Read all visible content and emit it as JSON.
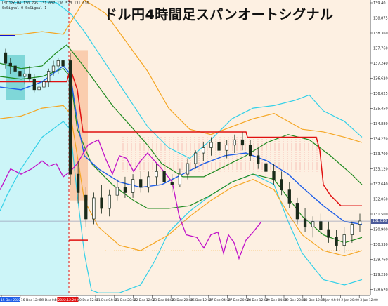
{
  "window": {
    "title": "ドル円4時間足スパンオートシグナル",
    "header_line1": "USDJPY,H4  130.795 131.037 130.573 131.016",
    "header_line2": "SsSignal 0 SsSignal 1"
  },
  "colors": {
    "background": "#ffffff",
    "left_zone": "#ccf5f8",
    "right_zone": "#fdf0e2",
    "salmon_box": "#f9c9a8",
    "cyan_band": "#33d0e8",
    "orange_band": "#f5a623",
    "green_band": "#1f8a1f",
    "red_line": "#e01010",
    "blue_line": "#1e5ee8",
    "magenta_line": "#c010c8",
    "candle": "#1a2a1a"
  },
  "chart_data": {
    "type": "candlestick",
    "symbol": "USDJPY",
    "timeframe": "H4",
    "ylim": [
      128.2,
      139.4
    ],
    "y_ticks": [
      "139.40",
      "138.875",
      "138.360",
      "137.760",
      "137.240",
      "136.620",
      "136.025",
      "135.450",
      "134.880",
      "134.270",
      "133.700",
      "133.120",
      "132.640",
      "132.060",
      "131.500",
      "130.900",
      "130.330",
      "129.760",
      "129.230",
      "128.620"
    ],
    "current_price": "131.016",
    "x_ticks": [
      "15 Dec 2022",
      "16 Dec 12:00",
      "19 Dec 04:00",
      "2022.12.20 04:00",
      "20 Dec 12:00",
      "21 Dec 04:00",
      "21 Dec 20:00",
      "22 Dec 12:00",
      "23 Dec 04:00",
      "23 Dec 20:00",
      "26 Dec 12:00",
      "27 Dec 04:00",
      "27 Dec 20:00",
      "28 Dec 12:00",
      "29 Dec 04:00",
      "29 Dec 20:00",
      "30 Dec 12:00",
      "2 Jan 04:00",
      "2 Jan 20:00",
      "3 Jan 12:00"
    ],
    "candles": [
      [
        137.4,
        137.55,
        136.8,
        137.0
      ],
      [
        137.0,
        137.2,
        136.6,
        136.9
      ],
      [
        136.9,
        137.1,
        136.5,
        136.7
      ],
      [
        136.7,
        136.9,
        136.3,
        136.5
      ],
      [
        136.5,
        136.8,
        136.2,
        136.6
      ],
      [
        136.6,
        136.9,
        136.3,
        136.4
      ],
      [
        136.4,
        136.6,
        135.9,
        136.0
      ],
      [
        136.0,
        136.3,
        135.7,
        136.1
      ],
      [
        136.1,
        136.5,
        135.8,
        136.3
      ],
      [
        136.3,
        136.8,
        136.1,
        136.7
      ],
      [
        136.7,
        137.1,
        136.5,
        136.9
      ],
      [
        136.9,
        137.2,
        136.6,
        137.1
      ],
      [
        137.1,
        137.3,
        136.7,
        136.9
      ],
      [
        137.1,
        137.4,
        132.4,
        132.8
      ],
      [
        132.8,
        133.3,
        131.7,
        132.1
      ],
      [
        132.0,
        132.3,
        130.8,
        131.1
      ],
      [
        131.1,
        132.1,
        130.9,
        131.9
      ],
      [
        131.9,
        132.4,
        131.3,
        131.5
      ],
      [
        131.5,
        132.2,
        131.2,
        132.0
      ],
      [
        132.0,
        132.6,
        131.8,
        132.3
      ],
      [
        132.3,
        132.7,
        131.9,
        132.1
      ],
      [
        132.1,
        132.8,
        131.9,
        132.6
      ],
      [
        132.6,
        132.9,
        132.1,
        132.3
      ],
      [
        132.3,
        132.9,
        132.1,
        132.7
      ],
      [
        132.7,
        133.2,
        132.4,
        132.9
      ],
      [
        132.9,
        133.1,
        132.4,
        132.5
      ],
      [
        132.5,
        132.8,
        132.1,
        132.4
      ],
      [
        132.4,
        133.0,
        132.3,
        132.8
      ],
      [
        132.8,
        133.4,
        132.6,
        133.2
      ],
      [
        133.2,
        133.7,
        133.0,
        133.6
      ],
      [
        133.6,
        134.0,
        133.3,
        133.8
      ],
      [
        133.8,
        134.2,
        133.5,
        134.0
      ],
      [
        134.0,
        134.3,
        133.5,
        133.7
      ],
      [
        133.7,
        134.1,
        133.4,
        133.9
      ],
      [
        133.9,
        134.3,
        133.6,
        134.1
      ],
      [
        134.1,
        134.4,
        133.7,
        133.9
      ],
      [
        133.9,
        134.1,
        133.3,
        133.5
      ],
      [
        133.5,
        133.8,
        133.0,
        133.2
      ],
      [
        133.2,
        133.5,
        132.7,
        132.9
      ],
      [
        132.9,
        133.2,
        132.4,
        132.6
      ],
      [
        132.6,
        132.9,
        132.0,
        132.2
      ],
      [
        132.2,
        132.5,
        131.5,
        131.7
      ],
      [
        131.7,
        131.9,
        130.9,
        131.1
      ],
      [
        131.1,
        131.5,
        130.6,
        130.8
      ],
      [
        130.8,
        131.2,
        130.4,
        131.0
      ],
      [
        131.0,
        131.3,
        130.5,
        130.7
      ],
      [
        130.7,
        131.0,
        130.2,
        130.4
      ],
      [
        130.4,
        130.7,
        129.9,
        130.1
      ],
      [
        130.1,
        130.8,
        129.8,
        130.5
      ],
      [
        130.5,
        131.0,
        130.2,
        130.9
      ],
      [
        130.9,
        131.3,
        130.6,
        131.02
      ]
    ]
  }
}
